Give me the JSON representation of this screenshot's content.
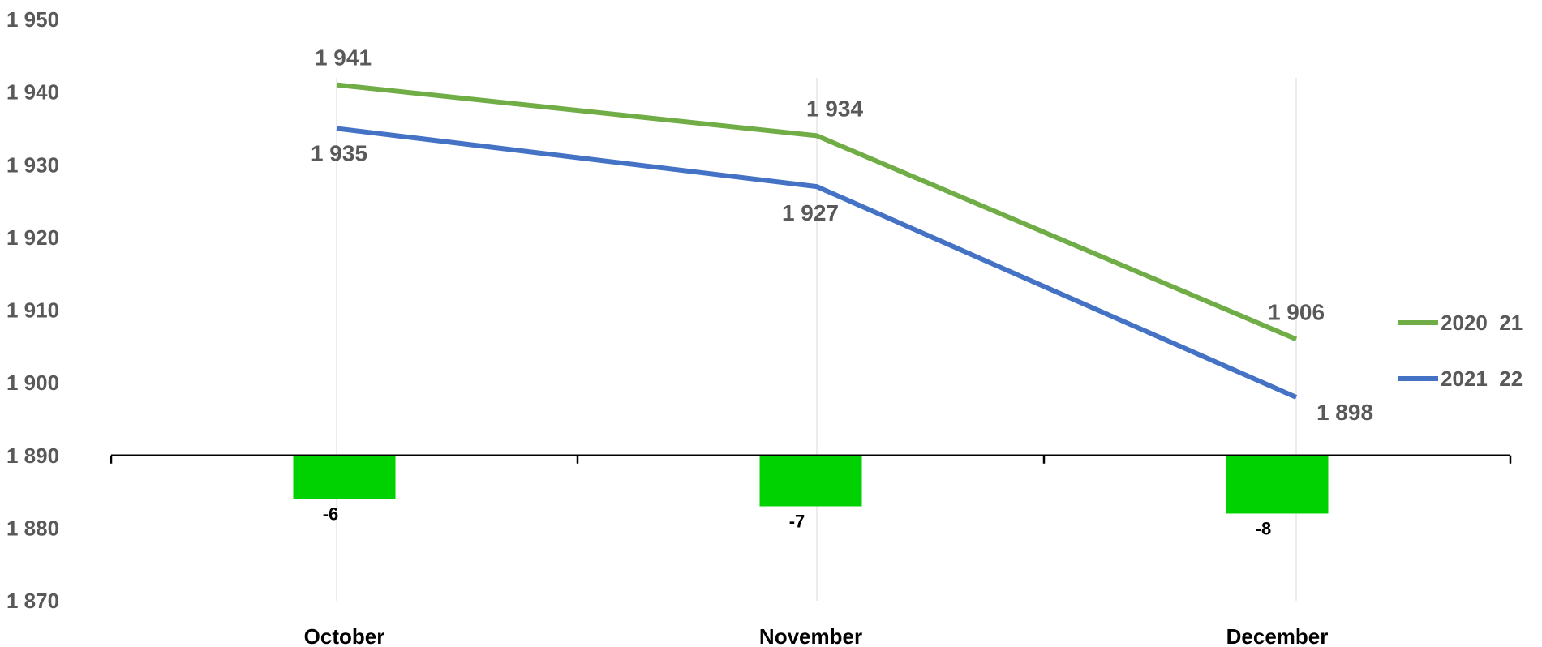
{
  "chart_data": {
    "type": "line",
    "categories": [
      "October",
      "November",
      "December"
    ],
    "series": [
      {
        "name": "2020_21",
        "values": [
          1941,
          1934,
          1906
        ],
        "color": "#70AD47",
        "labels": [
          "1 941",
          "1 934",
          "1 906"
        ]
      },
      {
        "name": "2021_22",
        "values": [
          1935,
          1927,
          1898
        ],
        "color": "#4472C4",
        "labels": [
          "1 935",
          "1 927",
          "1 898"
        ]
      }
    ],
    "difference": {
      "type": "bar",
      "values": [
        -6,
        -7,
        -8
      ],
      "labels": [
        "-6",
        "-7",
        "-8"
      ],
      "color": "#00D100"
    },
    "y_axis": {
      "ylim": [
        1870,
        1950
      ],
      "ticks": [
        1950,
        1940,
        1930,
        1920,
        1910,
        1900,
        1890,
        1880,
        1870
      ],
      "tick_labels": [
        "1 950",
        "1 940",
        "1 930",
        "1 920",
        "1 910",
        "1 900",
        "1 890",
        "1 880",
        "1 870"
      ],
      "baseline": 1890
    },
    "title": "",
    "xlabel": "",
    "ylabel": "",
    "legend_position": "right",
    "grid": "vertical category lines"
  }
}
